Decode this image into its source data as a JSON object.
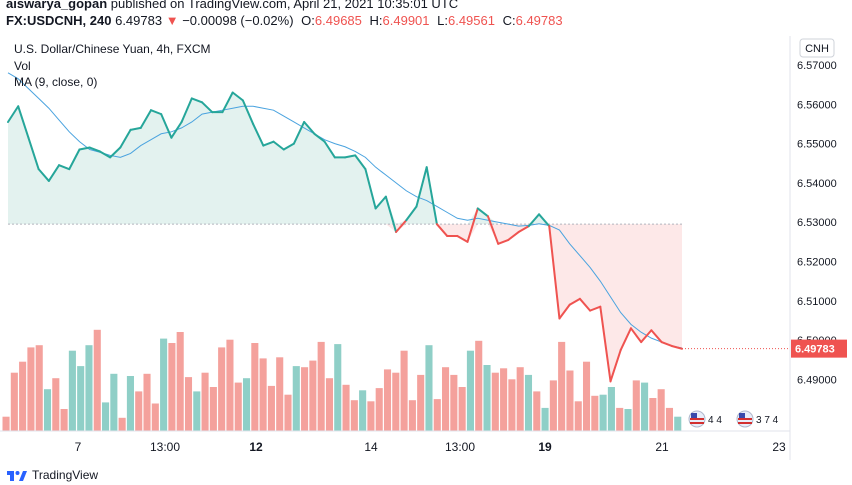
{
  "header": {
    "author": "aiswarya_gopan",
    "published_text": "published on TradingView.com, April 21, 2021 10:35:01 UTC",
    "symbol": "FX:USDCNH, 240",
    "last": "6.49783",
    "change_arrow": "▼",
    "change": "−0.00098 (−0.02%)",
    "open_label": "O:",
    "open": "6.49685",
    "high_label": "H:",
    "high": "6.49901",
    "low_label": "L:",
    "low": "6.49561",
    "close_label": "C:",
    "close": "6.49783"
  },
  "legend": {
    "title": "U.S. Dollar/Chinese Yuan, 4h, FXCM",
    "vol": "Vol",
    "ma": "MA (9, close, 0)"
  },
  "currency_badge": "CNH",
  "price_tag": "6.49783",
  "events": [
    {
      "flag": "us-flag-icon",
      "text": "4 4"
    },
    {
      "flag": "us-flag-icon",
      "text": "3 7 4"
    }
  ],
  "footer": {
    "brand": "TradingView"
  },
  "colors": {
    "up": "#26a69a",
    "down": "#ef5350",
    "ma": "#4aa3df",
    "vol_up": "#8fcfc7",
    "vol_down": "#f4a19c",
    "fill_up": "#e3f2ef",
    "fill_down": "#fde8e8"
  },
  "chart_data": {
    "type": "line",
    "title": "U.S. Dollar/Chinese Yuan, 4h, FXCM",
    "y_ticks": [
      "6.57000",
      "6.56000",
      "6.55000",
      "6.54000",
      "6.53000",
      "6.52000",
      "6.51000",
      "6.50000",
      "6.49000"
    ],
    "x_ticks": [
      "7",
      "13:00",
      "12",
      "14",
      "13:00",
      "19",
      "21",
      "23"
    ],
    "ylim": [
      6.485,
      6.573
    ],
    "baseline": 6.5295,
    "last_price": 6.49783,
    "price": [
      6.5555,
      6.5595,
      6.5515,
      6.5435,
      6.5405,
      6.5445,
      6.5435,
      6.5485,
      6.549,
      6.548,
      6.5465,
      6.549,
      6.5535,
      6.554,
      6.5585,
      6.5575,
      6.5515,
      6.5555,
      6.5615,
      6.5605,
      6.558,
      6.558,
      6.563,
      6.561,
      6.555,
      6.5495,
      6.5505,
      6.5485,
      6.55,
      6.5555,
      6.5525,
      6.5505,
      6.5465,
      6.5465,
      6.547,
      6.5435,
      6.5335,
      6.5365,
      6.5275,
      6.5305,
      6.534,
      6.544,
      6.5295,
      6.5265,
      6.5265,
      6.525,
      6.5335,
      6.5315,
      6.5245,
      6.5255,
      6.5275,
      6.529,
      6.532,
      6.529,
      6.5055,
      6.509,
      6.5105,
      6.5075,
      6.5085,
      6.4895,
      6.4975,
      6.503,
      6.4995,
      6.5025,
      6.4995,
      6.4985,
      6.4978
    ],
    "ma": [
      6.568,
      6.5665,
      6.564,
      6.5615,
      6.559,
      6.556,
      6.553,
      6.5505,
      6.5485,
      6.5478,
      6.547,
      6.5465,
      6.5475,
      6.5495,
      6.551,
      6.5525,
      6.553,
      6.554,
      6.5555,
      6.5575,
      6.558,
      6.5585,
      6.559,
      6.5595,
      6.5595,
      6.559,
      6.5585,
      6.557,
      6.5555,
      6.554,
      6.5525,
      6.551,
      6.55,
      6.5492,
      6.548,
      6.5465,
      6.544,
      6.542,
      6.54,
      6.538,
      6.5365,
      6.5355,
      6.534,
      6.5325,
      6.531,
      6.5305,
      6.531,
      6.5305,
      6.53,
      6.5295,
      6.529,
      6.5292,
      6.5296,
      6.5292,
      6.528,
      6.5245,
      6.5215,
      6.5185,
      6.515,
      6.511,
      6.507,
      6.504,
      6.502,
      6.5005,
      6.4995,
      6.4985,
      6.498
    ],
    "volume": [
      0.13,
      0.53,
      0.63,
      0.76,
      0.78,
      0.38,
      0.48,
      0.2,
      0.73,
      0.59,
      0.78,
      0.92,
      0.26,
      0.52,
      0.12,
      0.5,
      0.36,
      0.52,
      0.25,
      0.84,
      0.8,
      0.9,
      0.49,
      0.36,
      0.53,
      0.4,
      0.76,
      0.83,
      0.44,
      0.48,
      0.8,
      0.66,
      0.41,
      0.67,
      0.33,
      0.59,
      0.58,
      0.64,
      0.81,
      0.48,
      0.79,
      0.42,
      0.28,
      0.37,
      0.27,
      0.39,
      0.56,
      0.53,
      0.73,
      0.28,
      0.51,
      0.78,
      0.29,
      0.58,
      0.51,
      0.4,
      0.73,
      0.82,
      0.6,
      0.53,
      0.57,
      0.47,
      0.58,
      0.51,
      0.36,
      0.21,
      0.46,
      0.81,
      0.55,
      0.27,
      0.63,
      0.32,
      0.33,
      0.4,
      0.21,
      0.2,
      0.46,
      0.44,
      0.3,
      0.38,
      0.21,
      0.13
    ],
    "volume_up": [
      false,
      false,
      false,
      false,
      false,
      true,
      false,
      false,
      true,
      true,
      true,
      false,
      true,
      true,
      false,
      true,
      false,
      false,
      false,
      true,
      false,
      false,
      false,
      true,
      false,
      false,
      false,
      false,
      false,
      true,
      false,
      false,
      false,
      false,
      false,
      true,
      false,
      false,
      false,
      false,
      true,
      false,
      false,
      true,
      false,
      false,
      false,
      false,
      false,
      false,
      false,
      true,
      false,
      false,
      false,
      false,
      true,
      false,
      true,
      false,
      false,
      false,
      false,
      true,
      false,
      true,
      false,
      false,
      false,
      false,
      false,
      false,
      true,
      true,
      false,
      true,
      false,
      true,
      false,
      false,
      false,
      true
    ]
  }
}
